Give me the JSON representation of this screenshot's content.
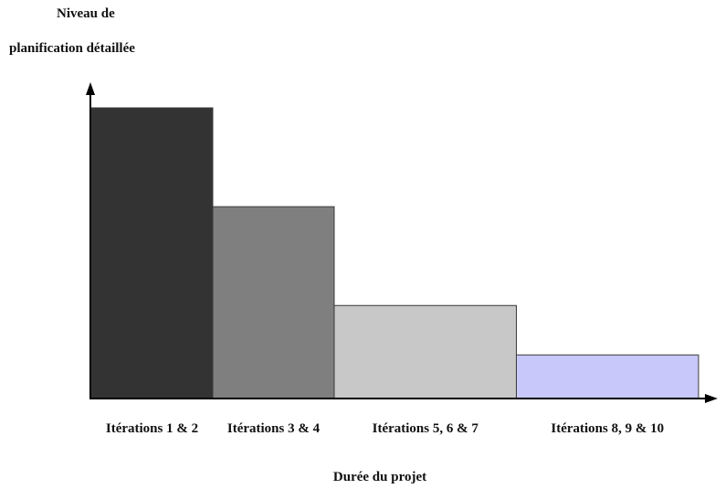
{
  "chart_data": {
    "type": "bar",
    "ylabel_lines": [
      "Niveau de",
      "planification détaillée"
    ],
    "xlabel": "Durée du projet",
    "categories": [
      "Itérations 1 & 2",
      "Itérations 3 & 4",
      "Itérations 5, 6 & 7",
      "Itérations 8, 9 & 10"
    ],
    "widths": [
      2,
      2,
      3,
      3
    ],
    "values": [
      100,
      66,
      32,
      15
    ],
    "ylim": [
      0,
      110
    ],
    "grid": false,
    "colors": [
      "#333333",
      "#7f7f7f",
      "#c8c8c8",
      "#c8c8fa"
    ]
  }
}
